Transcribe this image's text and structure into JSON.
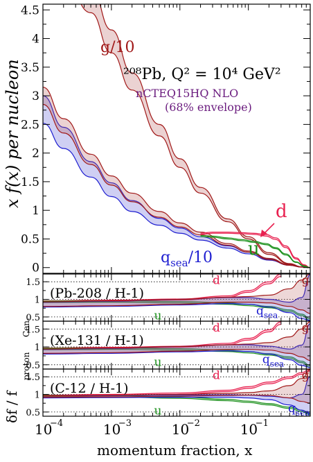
{
  "chart_data": {
    "type": "line",
    "x_scale": "log",
    "xlim": [
      0.0001,
      0.8
    ],
    "xlabel": "momentum fraction, x",
    "x_ticks": [
      "10",
      "10",
      "10",
      "10"
    ],
    "x_tick_exponents": [
      "−4",
      "−3",
      "−2",
      "−1"
    ],
    "top_panel": {
      "ylabel": "x f(x) per nucleon",
      "ylim": [
        -0.1,
        4.6
      ],
      "y_ticks": [
        "0",
        "0.5",
        "1",
        "1.5",
        "2",
        "2.5",
        "3",
        "3.5",
        "4",
        "4.5"
      ],
      "title": "²⁰⁸Pb, Q² = 10⁴ GeV²",
      "subtitle_line1": "nCTEQ15HQ NLO",
      "subtitle_line2": "(68% envelope)",
      "series": [
        {
          "name": "g/10",
          "color": "#a01818",
          "fill": "rgba(175,75,75,0.25)",
          "x": [
            0.0001,
            0.0002,
            0.0005,
            0.001,
            0.002,
            0.005,
            0.01,
            0.02,
            0.05,
            0.1,
            0.2,
            0.4,
            0.6,
            0.8
          ],
          "upper": [
            6.9,
            6.0,
            4.9,
            4.15,
            3.4,
            2.5,
            1.9,
            1.4,
            0.85,
            0.54,
            0.26,
            0.07,
            0.015,
            0.0
          ],
          "lower": [
            6.2,
            5.4,
            4.45,
            3.75,
            3.1,
            2.3,
            1.75,
            1.3,
            0.8,
            0.5,
            0.23,
            0.06,
            0.01,
            0.0
          ]
        },
        {
          "name": "qsea/10",
          "color": "#1e1ed0",
          "fill": "rgba(95,95,215,0.30)",
          "x": [
            0.0001,
            0.0002,
            0.0005,
            0.001,
            0.002,
            0.005,
            0.01,
            0.02,
            0.05,
            0.1,
            0.2,
            0.4,
            0.6,
            0.8
          ],
          "upper": [
            3.0,
            2.45,
            1.85,
            1.48,
            1.17,
            0.86,
            0.69,
            0.54,
            0.38,
            0.27,
            0.15,
            0.05,
            0.01,
            0.0
          ],
          "lower": [
            2.52,
            2.08,
            1.58,
            1.24,
            0.98,
            0.74,
            0.6,
            0.48,
            0.34,
            0.24,
            0.13,
            0.04,
            0.008,
            0.0
          ]
        },
        {
          "name": "qsea/10 (red envelope)",
          "color": "#a01818",
          "fill": "rgba(175,75,75,0.25)",
          "x": [
            0.0001,
            0.0002,
            0.0005,
            0.001,
            0.002,
            0.005,
            0.01,
            0.02,
            0.05,
            0.1,
            0.2,
            0.4,
            0.6,
            0.8
          ],
          "upper": [
            3.15,
            2.6,
            1.98,
            1.6,
            1.3,
            0.98,
            0.78,
            0.62,
            0.42,
            0.29,
            0.16,
            0.05,
            0.01,
            0.0
          ],
          "lower": [
            2.85,
            2.35,
            1.8,
            1.44,
            1.15,
            0.88,
            0.71,
            0.57,
            0.39,
            0.27,
            0.14,
            0.04,
            0.008,
            0.0
          ]
        },
        {
          "name": "d",
          "color": "#e8204f",
          "fill": "rgba(232,32,79,0.25)",
          "x": [
            0.02,
            0.03,
            0.05,
            0.08,
            0.12,
            0.18,
            0.25,
            0.35,
            0.5,
            0.65,
            0.8
          ],
          "upper": [
            0.6,
            0.62,
            0.62,
            0.61,
            0.6,
            0.58,
            0.52,
            0.38,
            0.17,
            0.05,
            0.0
          ],
          "lower": [
            0.58,
            0.6,
            0.6,
            0.59,
            0.58,
            0.55,
            0.49,
            0.35,
            0.15,
            0.04,
            0.0
          ]
        },
        {
          "name": "u",
          "color": "#1a8f1a",
          "fill": "rgba(26,143,26,0.20)",
          "x": [
            0.02,
            0.03,
            0.05,
            0.08,
            0.12,
            0.18,
            0.25,
            0.35,
            0.5,
            0.65,
            0.8
          ],
          "upper": [
            0.56,
            0.55,
            0.52,
            0.49,
            0.46,
            0.42,
            0.35,
            0.24,
            0.1,
            0.03,
            0.0
          ],
          "lower": [
            0.54,
            0.53,
            0.5,
            0.47,
            0.44,
            0.4,
            0.33,
            0.22,
            0.09,
            0.02,
            0.0
          ]
        }
      ],
      "labels": {
        "g": "g/10",
        "qsea": "q",
        "qsea_sub": "sea",
        "qsea_tail": "/10",
        "d": "d",
        "u": "u"
      }
    },
    "ratio_panels": {
      "ylabel": "δf / f",
      "ylabel_sup": "proton",
      "ylabel_sub": "Cen.",
      "ylim": [
        0.38,
        1.72
      ],
      "y_ticks": [
        "0.5",
        "1",
        "1.5"
      ],
      "panels": [
        {
          "label": "(Pb-208 / H-1)",
          "series": [
            {
              "name": "d",
              "color": "#e8204f",
              "fill": "rgba(232,32,79,0.2)",
              "x": [
                0.0001,
                0.001,
                0.01,
                0.05,
                0.1,
                0.2,
                0.3
              ],
              "upper": [
                0.96,
                0.98,
                1.01,
                1.1,
                1.25,
                1.5,
                1.72
              ],
              "lower": [
                0.92,
                0.94,
                0.98,
                1.06,
                1.2,
                1.44,
                1.65
              ]
            },
            {
              "name": "u",
              "color": "#1a8f1a",
              "fill": "rgba(26,143,26,0.18)",
              "x": [
                0.0001,
                0.001,
                0.01,
                0.05,
                0.1,
                0.2,
                0.4,
                0.6,
                0.8
              ],
              "upper": [
                0.95,
                0.96,
                0.94,
                0.9,
                0.86,
                0.8,
                0.7,
                0.58,
                0.45
              ],
              "lower": [
                0.91,
                0.92,
                0.9,
                0.86,
                0.82,
                0.76,
                0.66,
                0.54,
                0.4
              ]
            },
            {
              "name": "qsea",
              "color": "#1e1ed0",
              "fill": "rgba(95,95,215,0.30)",
              "x": [
                0.0001,
                0.001,
                0.01,
                0.05,
                0.1,
                0.2,
                0.4,
                0.6,
                0.8
              ],
              "upper": [
                0.92,
                0.95,
                1.0,
                1.05,
                1.05,
                1.0,
                0.92,
                1.05,
                1.7
              ],
              "lower": [
                0.78,
                0.8,
                0.84,
                0.88,
                0.86,
                0.78,
                0.62,
                0.45,
                0.4
              ]
            },
            {
              "name": "g",
              "color": "#a01818",
              "fill": "rgba(175,75,75,0.22)",
              "x": [
                0.0001,
                0.001,
                0.01,
                0.05,
                0.1,
                0.2,
                0.4,
                0.6,
                0.8
              ],
              "upper": [
                0.93,
                0.96,
                1.0,
                1.06,
                1.08,
                1.12,
                1.3,
                1.55,
                1.72
              ],
              "lower": [
                0.8,
                0.82,
                0.86,
                0.92,
                0.92,
                0.9,
                0.8,
                0.7,
                0.6
              ]
            }
          ],
          "labels": {
            "d": "d",
            "g": "g",
            "u": "u",
            "q": "q",
            "q_sub": "sea"
          }
        },
        {
          "label": "(Xe-131 / H-1)",
          "series": [
            {
              "name": "d",
              "color": "#e8204f",
              "fill": "rgba(232,32,79,0.2)",
              "x": [
                0.0001,
                0.001,
                0.01,
                0.05,
                0.1,
                0.2,
                0.3
              ],
              "upper": [
                0.97,
                0.99,
                1.02,
                1.1,
                1.24,
                1.48,
                1.7
              ],
              "lower": [
                0.93,
                0.95,
                0.99,
                1.06,
                1.19,
                1.42,
                1.63
              ]
            },
            {
              "name": "u",
              "color": "#1a8f1a",
              "fill": "rgba(26,143,26,0.18)",
              "x": [
                0.0001,
                0.001,
                0.01,
                0.05,
                0.1,
                0.2,
                0.4,
                0.6,
                0.8
              ],
              "upper": [
                0.96,
                0.97,
                0.95,
                0.91,
                0.87,
                0.81,
                0.72,
                0.6,
                0.48
              ],
              "lower": [
                0.92,
                0.93,
                0.91,
                0.87,
                0.83,
                0.77,
                0.68,
                0.56,
                0.43
              ]
            },
            {
              "name": "qsea",
              "color": "#1e1ed0",
              "fill": "rgba(95,95,215,0.30)",
              "x": [
                0.0001,
                0.001,
                0.01,
                0.05,
                0.1,
                0.2,
                0.4,
                0.6,
                0.8
              ],
              "upper": [
                0.93,
                0.96,
                1.01,
                1.06,
                1.06,
                1.02,
                0.94,
                1.05,
                1.65
              ],
              "lower": [
                0.8,
                0.82,
                0.86,
                0.89,
                0.87,
                0.8,
                0.64,
                0.48,
                0.42
              ]
            },
            {
              "name": "g",
              "color": "#a01818",
              "fill": "rgba(175,75,75,0.22)",
              "x": [
                0.0001,
                0.001,
                0.01,
                0.05,
                0.1,
                0.2,
                0.4,
                0.6,
                0.8
              ],
              "upper": [
                0.94,
                0.97,
                1.01,
                1.06,
                1.08,
                1.12,
                1.28,
                1.5,
                1.7
              ],
              "lower": [
                0.82,
                0.84,
                0.88,
                0.93,
                0.93,
                0.91,
                0.82,
                0.72,
                0.62
              ]
            }
          ],
          "labels": {
            "d": "d",
            "g": "g",
            "u": "u",
            "q": "q",
            "q_sub": "sea"
          }
        },
        {
          "label": "(C-12 / H-1)",
          "series": [
            {
              "name": "d",
              "color": "#e8204f",
              "fill": "rgba(232,32,79,0.2)",
              "x": [
                0.0001,
                0.001,
                0.01,
                0.05,
                0.1,
                0.2,
                0.4,
                0.6,
                0.8
              ],
              "upper": [
                0.98,
                1.0,
                1.04,
                1.12,
                1.22,
                1.35,
                1.5,
                1.62,
                1.72
              ],
              "lower": [
                0.94,
                0.96,
                1.0,
                1.08,
                1.17,
                1.3,
                1.45,
                1.57,
                1.66
              ]
            },
            {
              "name": "u",
              "color": "#1a8f1a",
              "fill": "rgba(26,143,26,0.18)",
              "x": [
                0.0001,
                0.001,
                0.01,
                0.05,
                0.1,
                0.2,
                0.4,
                0.6,
                0.8
              ],
              "upper": [
                0.97,
                0.97,
                0.93,
                0.86,
                0.81,
                0.74,
                0.64,
                0.55,
                0.46
              ],
              "lower": [
                0.93,
                0.93,
                0.89,
                0.82,
                0.77,
                0.7,
                0.6,
                0.51,
                0.42
              ]
            },
            {
              "name": "qsea",
              "color": "#1e1ed0",
              "fill": "rgba(95,95,215,0.30)",
              "x": [
                0.0001,
                0.001,
                0.01,
                0.05,
                0.1,
                0.2,
                0.4,
                0.6,
                0.8
              ],
              "upper": [
                0.96,
                0.97,
                0.98,
                0.99,
                0.98,
                0.95,
                0.9,
                1.0,
                1.5
              ],
              "lower": [
                0.9,
                0.91,
                0.92,
                0.92,
                0.9,
                0.85,
                0.7,
                0.55,
                0.45
              ]
            },
            {
              "name": "g",
              "color": "#a01818",
              "fill": "rgba(175,75,75,0.22)",
              "x": [
                0.0001,
                0.001,
                0.01,
                0.05,
                0.1,
                0.2,
                0.4,
                0.6,
                0.8
              ],
              "upper": [
                0.96,
                0.98,
                1.0,
                1.03,
                1.05,
                1.1,
                1.25,
                1.45,
                1.7
              ],
              "lower": [
                0.92,
                0.93,
                0.95,
                0.97,
                0.98,
                0.97,
                0.9,
                0.8,
                0.75
              ]
            }
          ],
          "labels": {
            "d": "d",
            "g": "g",
            "u": "u",
            "q": "q",
            "q_sub": "sea"
          }
        }
      ]
    }
  }
}
